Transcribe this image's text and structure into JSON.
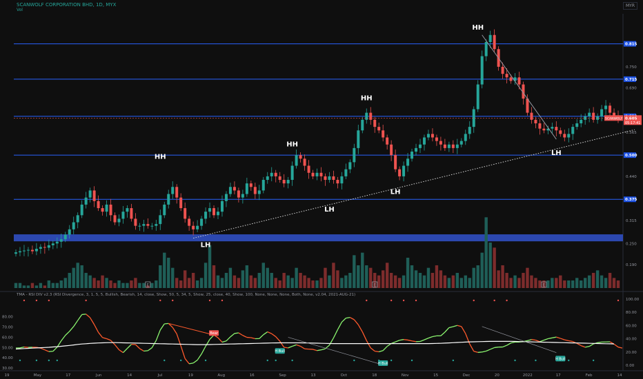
{
  "header": {
    "title": "SCANWOLF CORPORATION BHD, 1D, MYX",
    "volume_label": "Vol",
    "currency": "MYR"
  },
  "indicator": {
    "header": "TMA - RSI DIV v2.3 (RSI Divergence, 3, 1, 5, 5, Bullish, Bearish, 14, close, Show, 50, 5, 34, 5, Show, 25, close, 40, Show, 100, None, None, None, Both, None, v2.04, 2021-AUG-21)"
  },
  "colors": {
    "background": "#0f0f0f",
    "up": "#26a69a",
    "down": "#ef5350",
    "level_line": "#2962ff",
    "support_band": "#2c48b0",
    "badge_blue": "#1e53e5",
    "price_badge": "#ef5350",
    "rsi_up": "#8bf56f",
    "rsi_down": "#ff5a2c",
    "ma_line": "#ffffff",
    "label_text": "#ffffff"
  },
  "chart_data": [
    {
      "type": "candlestick",
      "title": "SCANWOLF CORPORATION BHD, 1D, MYX",
      "ylim": [
        0.12,
        0.9
      ],
      "price_scale_ticks": [
        "0.815",
        "0.750",
        "0.690",
        "0.565",
        "0.440",
        "0.315",
        "0.250",
        "0.190"
      ],
      "horizontal_levels": [
        {
          "value": 0.815,
          "label": "0.815"
        },
        {
          "value": 0.715,
          "label": "0.715"
        },
        {
          "value": 0.61,
          "label": "0.610"
        },
        {
          "value": 0.5,
          "label": "0.500"
        },
        {
          "value": 0.375,
          "label": "0.375"
        }
      ],
      "support_band": {
        "from": 0.262,
        "to": 0.27
      },
      "last_price": {
        "label": "SCANWOLF",
        "value": "0.605",
        "countdown": "05:17:41"
      },
      "x_tick_labels": [
        "19",
        "May",
        "17",
        "Jun",
        "14",
        "Jul",
        "19",
        "Aug",
        "16",
        "Sep",
        "13",
        "Oct",
        "18",
        "Nov",
        "15",
        "Dec",
        "20",
        "2022",
        "17",
        "Feb",
        "14"
      ],
      "swing_labels": [
        {
          "text": "HH",
          "date_index": 35,
          "value": 0.49
        },
        {
          "text": "LH",
          "date_index": 46,
          "value": 0.24
        },
        {
          "text": "HH",
          "date_index": 67,
          "value": 0.525
        },
        {
          "text": "LH",
          "date_index": 76,
          "value": 0.34
        },
        {
          "text": "HH",
          "date_index": 85,
          "value": 0.655
        },
        {
          "text": "LH",
          "date_index": 92,
          "value": 0.39
        },
        {
          "text": "HH",
          "date_index": 112,
          "value": 0.855
        },
        {
          "text": "LH",
          "date_index": 131,
          "value": 0.5
        }
      ],
      "trendlines": [
        {
          "style": "dotted",
          "from": [
            43,
            0.265
          ],
          "to": [
            150,
            0.572
          ]
        },
        {
          "style": "solid",
          "from": [
            113,
            0.84
          ],
          "to": [
            131,
            0.545
          ]
        }
      ],
      "volume_markers": [
        "E",
        "E",
        "E"
      ],
      "closes": [
        0.225,
        0.228,
        0.23,
        0.232,
        0.228,
        0.235,
        0.24,
        0.238,
        0.245,
        0.25,
        0.255,
        0.262,
        0.275,
        0.29,
        0.31,
        0.33,
        0.36,
        0.38,
        0.4,
        0.37,
        0.35,
        0.34,
        0.36,
        0.33,
        0.31,
        0.32,
        0.34,
        0.35,
        0.32,
        0.3,
        0.3,
        0.305,
        0.3,
        0.3,
        0.305,
        0.33,
        0.36,
        0.39,
        0.41,
        0.38,
        0.35,
        0.32,
        0.3,
        0.29,
        0.3,
        0.32,
        0.34,
        0.35,
        0.33,
        0.34,
        0.37,
        0.39,
        0.41,
        0.4,
        0.38,
        0.39,
        0.42,
        0.41,
        0.39,
        0.4,
        0.43,
        0.44,
        0.45,
        0.44,
        0.43,
        0.42,
        0.43,
        0.47,
        0.5,
        0.49,
        0.47,
        0.45,
        0.44,
        0.45,
        0.44,
        0.43,
        0.44,
        0.43,
        0.42,
        0.44,
        0.46,
        0.48,
        0.52,
        0.57,
        0.6,
        0.62,
        0.6,
        0.58,
        0.57,
        0.55,
        0.53,
        0.5,
        0.46,
        0.44,
        0.47,
        0.49,
        0.51,
        0.52,
        0.53,
        0.55,
        0.56,
        0.55,
        0.54,
        0.53,
        0.52,
        0.53,
        0.52,
        0.53,
        0.54,
        0.56,
        0.58,
        0.63,
        0.7,
        0.78,
        0.82,
        0.84,
        0.8,
        0.75,
        0.73,
        0.72,
        0.71,
        0.72,
        0.7,
        0.66,
        0.62,
        0.6,
        0.59,
        0.575,
        0.57,
        0.575,
        0.58,
        0.57,
        0.56,
        0.55,
        0.56,
        0.58,
        0.59,
        0.6,
        0.61,
        0.62,
        0.6,
        0.61,
        0.63,
        0.64,
        0.62,
        0.61,
        0.605
      ],
      "volumes": [
        2,
        2,
        1,
        1,
        2,
        1,
        2,
        1,
        3,
        2,
        2,
        3,
        4,
        6,
        8,
        10,
        9,
        6,
        5,
        4,
        3,
        5,
        4,
        3,
        2,
        3,
        2,
        2,
        3,
        4,
        2,
        2,
        1,
        2,
        3,
        9,
        14,
        12,
        8,
        4,
        3,
        7,
        4,
        6,
        3,
        4,
        10,
        17,
        9,
        5,
        4,
        6,
        8,
        5,
        4,
        7,
        9,
        5,
        4,
        6,
        10,
        8,
        6,
        4,
        3,
        6,
        5,
        4,
        8,
        6,
        5,
        4,
        3,
        3,
        4,
        8,
        5,
        10,
        7,
        4,
        5,
        6,
        13,
        9,
        14,
        9,
        8,
        6,
        5,
        7,
        10,
        6,
        5,
        4,
        5,
        12,
        9,
        7,
        6,
        5,
        8,
        6,
        9,
        7,
        5,
        4,
        5,
        6,
        4,
        5,
        4,
        8,
        9,
        14,
        28,
        18,
        16,
        7,
        9,
        6,
        4,
        5,
        4,
        6,
        8,
        5,
        4,
        3,
        3,
        3,
        4,
        4,
        5,
        3,
        3,
        3,
        4,
        3,
        4,
        5,
        6,
        7,
        5,
        4,
        6,
        4,
        3
      ],
      "volume_axis_max": 30
    },
    {
      "type": "line",
      "title": "TMA - RSI DIV v2.3",
      "ylim": [
        30,
        100
      ],
      "right_ticks": [
        "100.00",
        "80.00",
        "60.00",
        "40.00",
        "20.00",
        "0.00"
      ],
      "left_ticks": [
        "80.00",
        "70.00",
        "60.00",
        "50.00",
        "40.00",
        "30.00"
      ],
      "series": [
        {
          "values": [
            49.5,
            49.6,
            50.5,
            50.1,
            50.3,
            50.2,
            49.4,
            47.7,
            46,
            46.3,
            50.3,
            56.6,
            61.9,
            65.8,
            70.5,
            76.4,
            82.2,
            82.6,
            79.1,
            72.4,
            64.8,
            59.7,
            58.6,
            57,
            52.7,
            47.8,
            45,
            49.1,
            53.1,
            52.9,
            49,
            46.5,
            46.9,
            49.8,
            56.8,
            67.1,
            73.1,
            73.5,
            69.6,
            63.3,
            51.5,
            39.2,
            34.1,
            34.8,
            37.7,
            43.7,
            51.2,
            58,
            62.2,
            59.6,
            55.2,
            56.4,
            60.4,
            63.7,
            64.3,
            61.8,
            59.9,
            59.6,
            58.6,
            58.7,
            62.5,
            65.3,
            63.5,
            60.6,
            56.1,
            50.2,
            49.6,
            51.2,
            52.6,
            51.2,
            48.7,
            48.4,
            48.2,
            47,
            47.7,
            48.8,
            52.3,
            59.3,
            67.4,
            74.8,
            78.7,
            79.4,
            77.2,
            72.3,
            65.3,
            56.8,
            49.6,
            46.4,
            45.8,
            47,
            51.1,
            53.9,
            55.5,
            57.1,
            57.8,
            57.3,
            56.4,
            55.7,
            55.9,
            57.5,
            59.2,
            60.6,
            61.4,
            61.4,
            65,
            69.4,
            70.4,
            71.6,
            70.5,
            63.6,
            53.5,
            46.3,
            45.2,
            45.6,
            46.5,
            48.2,
            49.9,
            50.4,
            50.5,
            52.1,
            54.4,
            55.3,
            55.3,
            55.8,
            56.7,
            57.8,
            57.2,
            55.7,
            57.2,
            58.6,
            59.4,
            60.2,
            58.9,
            57.5,
            56.6,
            55.8,
            54,
            51.8,
            50.3,
            51.1,
            53.5,
            54.7,
            55.3,
            55.4,
            55.6,
            53.3,
            50.4,
            49.4
          ]
        },
        {
          "values": [
            48.5,
            48.8,
            49,
            49.2,
            49.4,
            49.6,
            49.8,
            50,
            50.2,
            50.5,
            50.8,
            51.2,
            51.6,
            52,
            52.5,
            53,
            53.4,
            53.7,
            54,
            54.2,
            54.4,
            54.6,
            54.7,
            54.8,
            54.8,
            54.7,
            54.6,
            54.5,
            54.4,
            54.3,
            54.2,
            54.1,
            54,
            53.9,
            53.8,
            53.7,
            53.6,
            53.5,
            53.4,
            53.3,
            53.2,
            53.1,
            53,
            52.9,
            52.8,
            52.8,
            52.8,
            52.9,
            53,
            53.1,
            53.2,
            53.3,
            53.4,
            53.5,
            53.6,
            53.7,
            53.8,
            53.9,
            54,
            54.1,
            54.2,
            54.3,
            54.4,
            54.5,
            54.6,
            54.6,
            54.6,
            54.6,
            54.6,
            54.6,
            54.5,
            54.4,
            54.3,
            54.2,
            54.1,
            54,
            53.9,
            53.8,
            53.8,
            53.8,
            53.8,
            53.8,
            53.8,
            53.8,
            53.8,
            53.8,
            53.8,
            53.8,
            53.8,
            53.8,
            53.8,
            53.8,
            53.8,
            53.8,
            53.8,
            53.8,
            53.8,
            53.8,
            53.8,
            53.8,
            53.8,
            53.9,
            54,
            54.1,
            54.3,
            54.5,
            54.7,
            54.9,
            55.1,
            55.3,
            55.5,
            55.6,
            55.7,
            55.8,
            55.9,
            56,
            56,
            56,
            56,
            56,
            56,
            55.9,
            55.8,
            55.7,
            55.6,
            55.5,
            55.4,
            55.3,
            55.2,
            55.1,
            55,
            54.9,
            54.8,
            54.7,
            54.6,
            54.5,
            54.4,
            54.3,
            54.2,
            54.1,
            54,
            53.9,
            53.8,
            53.7,
            53.6,
            53.5
          ]
        }
      ],
      "signal_labels": [
        "Bear",
        "H Bull",
        "H Bull",
        "H Bull"
      ]
    }
  ]
}
